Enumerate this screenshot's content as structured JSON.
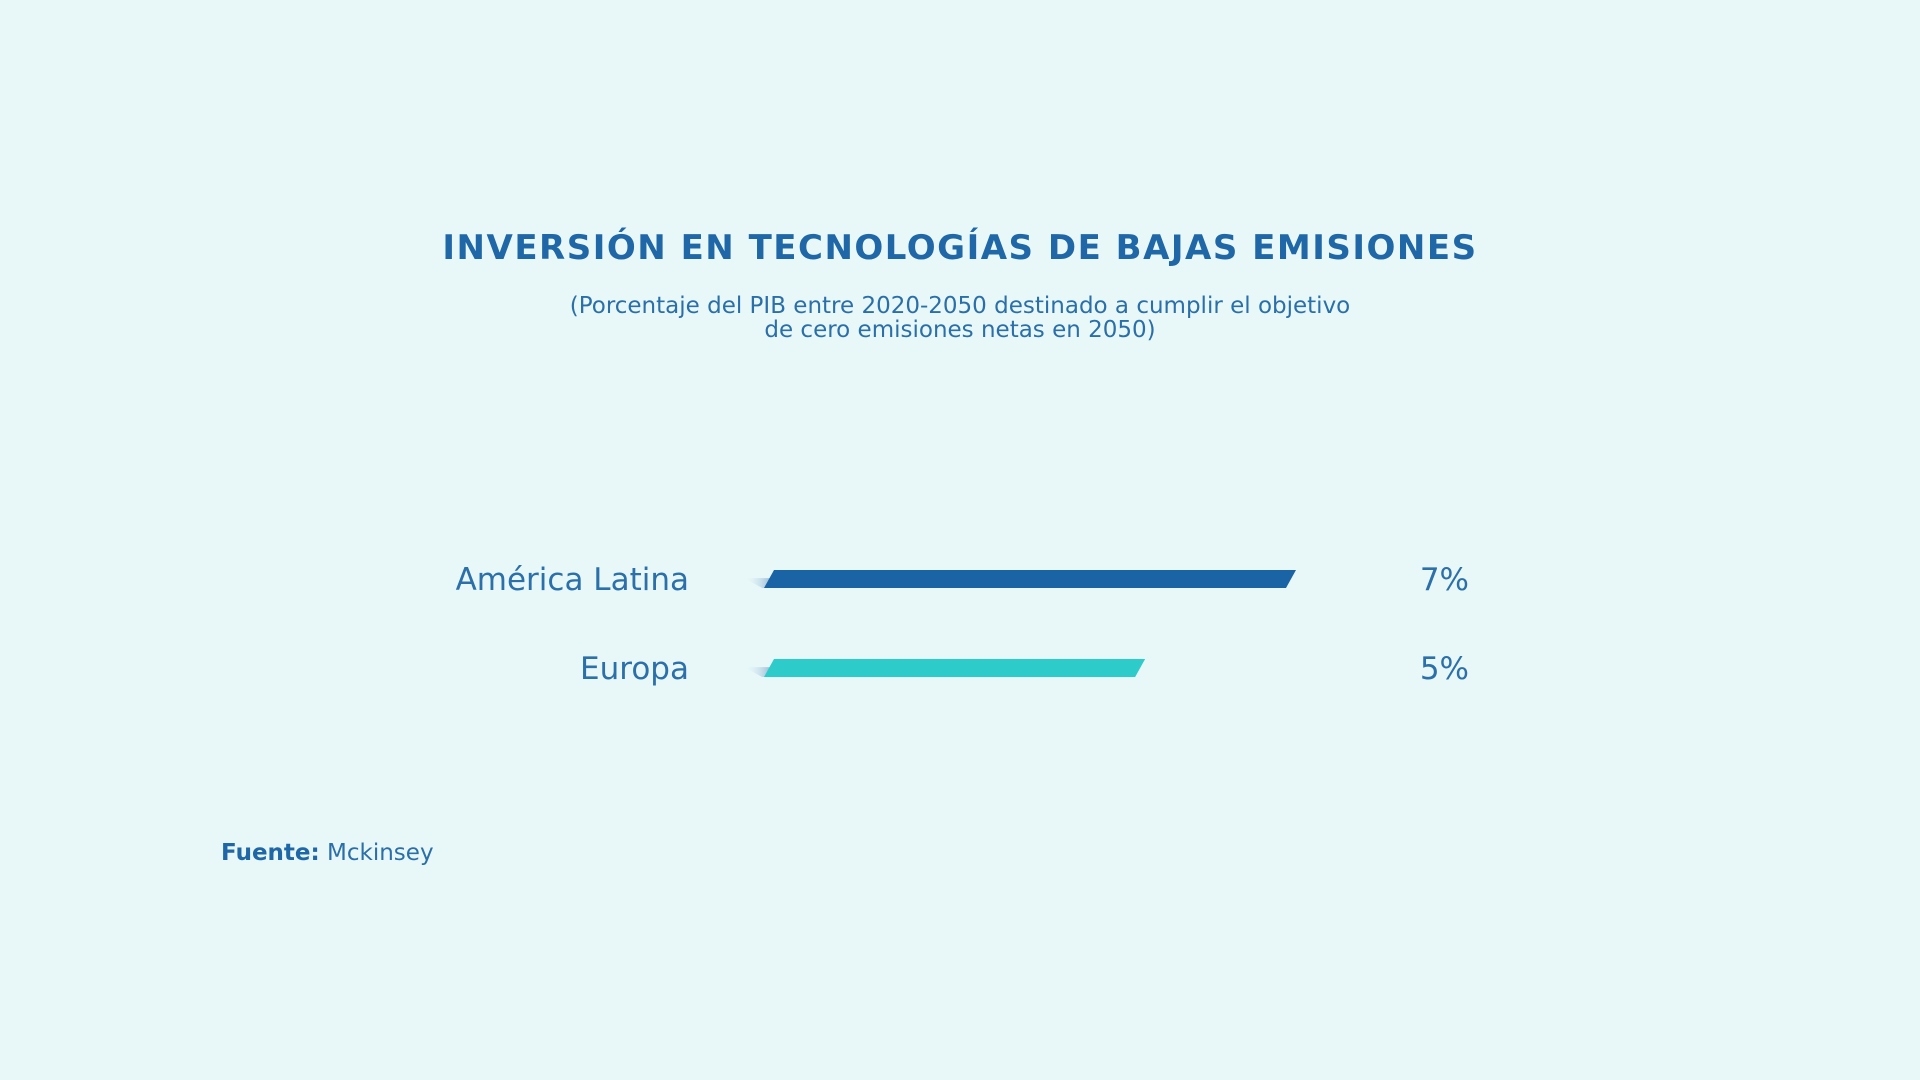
{
  "title": "INVERSIÓN EN TECNOLOGÍAS DE BAJAS EMISIONES",
  "subtitle": "(Porcentaje del PIB entre 2020-2050 destinado a cumplir el objetivo de cero emisiones netas en 2050)",
  "source": {
    "label": "Fuente:",
    "value": "Mckinsey"
  },
  "colors": {
    "background": "#e8f8f9",
    "text": "#2c70aa",
    "america_latina": "#1a64a6",
    "europa": "#2ecbcb"
  },
  "chart_data": {
    "type": "bar",
    "orientation": "horizontal",
    "title": "INVERSIÓN EN TECNOLOGÍAS DE BAJAS EMISIONES",
    "subtitle": "(Porcentaje del PIB entre 2020-2050 destinado a cumplir el objetivo de cero emisiones netas en 2050)",
    "categories": [
      "América Latina",
      "Europa"
    ],
    "values": [
      7,
      5
    ],
    "value_labels": [
      "7%",
      "5%"
    ],
    "unit": "%",
    "xlim": [
      0,
      7
    ],
    "bar_colors": [
      "#1a64a6",
      "#2ecbcb"
    ],
    "grid": false,
    "legend": "none"
  }
}
